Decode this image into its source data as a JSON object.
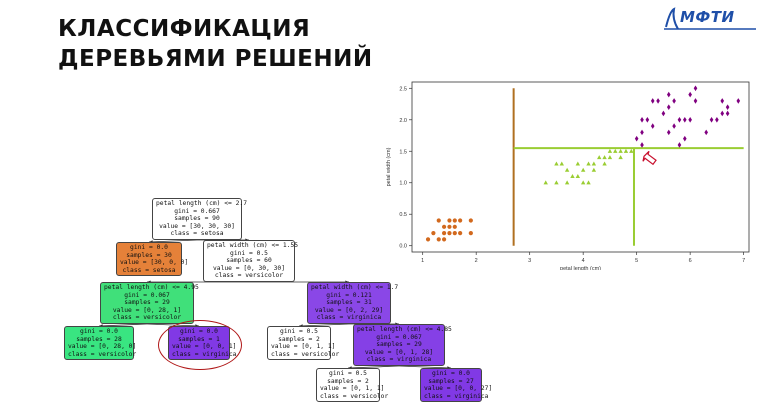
{
  "slide": {
    "title_line1": "КЛАССИФИКАЦИЯ",
    "title_line2": "ДЕРЕВЬЯМИ РЕШЕНИЙ",
    "logo_text": "МФТИ",
    "logo_color": "#1f4fa8"
  },
  "chart_data": {
    "type": "scatter",
    "xlabel": "petal length (cm)",
    "ylabel": "petal width (cm)",
    "xlim": [
      0.8,
      7.1
    ],
    "ylim": [
      -0.1,
      2.6
    ],
    "xticks": [
      "1",
      "2",
      "3",
      "4",
      "5",
      "6",
      "7"
    ],
    "yticks": [
      "0.0",
      "0.5",
      "1.0",
      "1.5",
      "2.0",
      "2.5"
    ],
    "grid": false,
    "series": [
      {
        "color": "#d2691e",
        "marker": "circle",
        "points": [
          [
            1.1,
            0.1
          ],
          [
            1.3,
            0.1
          ],
          [
            1.4,
            0.2
          ],
          [
            1.5,
            0.2
          ],
          [
            1.6,
            0.2
          ],
          [
            1.4,
            0.3
          ],
          [
            1.3,
            0.4
          ],
          [
            1.5,
            0.4
          ],
          [
            1.6,
            0.4
          ],
          [
            1.7,
            0.4
          ],
          [
            1.9,
            0.4
          ],
          [
            1.2,
            0.2
          ],
          [
            1.6,
            0.3
          ],
          [
            1.4,
            0.1
          ],
          [
            1.5,
            0.3
          ],
          [
            1.7,
            0.2
          ],
          [
            1.9,
            0.2
          ]
        ]
      },
      {
        "color": "#9acd32",
        "marker": "triangle",
        "points": [
          [
            3.3,
            1.0
          ],
          [
            3.5,
            1.0
          ],
          [
            3.7,
            1.0
          ],
          [
            3.9,
            1.1
          ],
          [
            4.0,
            1.0
          ],
          [
            3.8,
            1.1
          ],
          [
            3.6,
            1.3
          ],
          [
            3.9,
            1.3
          ],
          [
            4.0,
            1.2
          ],
          [
            4.1,
            1.3
          ],
          [
            4.2,
            1.3
          ],
          [
            4.4,
            1.3
          ],
          [
            3.7,
            1.2
          ],
          [
            4.5,
            1.4
          ],
          [
            4.7,
            1.4
          ],
          [
            4.3,
            1.4
          ],
          [
            4.5,
            1.5
          ],
          [
            4.6,
            1.5
          ],
          [
            4.7,
            1.5
          ],
          [
            4.8,
            1.5
          ],
          [
            4.9,
            1.5
          ],
          [
            4.4,
            1.4
          ],
          [
            3.5,
            1.3
          ],
          [
            4.2,
            1.2
          ],
          [
            4.1,
            1.0
          ]
        ]
      },
      {
        "color": "#800080",
        "marker": "diamond",
        "points": [
          [
            5.0,
            1.7
          ],
          [
            5.1,
            1.8
          ],
          [
            5.3,
            1.9
          ],
          [
            5.1,
            2.0
          ],
          [
            5.2,
            2.0
          ],
          [
            5.5,
            2.1
          ],
          [
            5.6,
            2.2
          ],
          [
            5.8,
            2.0
          ],
          [
            5.9,
            2.0
          ],
          [
            6.0,
            2.0
          ],
          [
            6.1,
            2.3
          ],
          [
            5.7,
            2.3
          ],
          [
            5.4,
            2.3
          ],
          [
            5.6,
            2.4
          ],
          [
            6.0,
            2.4
          ],
          [
            6.3,
            1.8
          ],
          [
            6.6,
            2.1
          ],
          [
            6.7,
            2.2
          ],
          [
            6.9,
            2.3
          ],
          [
            6.4,
            2.0
          ],
          [
            5.8,
            1.6
          ],
          [
            5.1,
            1.6
          ],
          [
            5.7,
            1.9
          ],
          [
            5.3,
            2.3
          ],
          [
            6.1,
            2.5
          ],
          [
            6.6,
            2.3
          ],
          [
            5.6,
            1.8
          ],
          [
            5.9,
            1.7
          ],
          [
            6.7,
            2.1
          ],
          [
            6.5,
            2.0
          ]
        ]
      }
    ],
    "decision_lines": [
      {
        "orientation": "vertical",
        "x": 2.7,
        "y_range": [
          0.0,
          2.5
        ],
        "color": "#b07020"
      },
      {
        "orientation": "horizontal",
        "y": 1.55,
        "x_range": [
          2.7,
          7.0
        ],
        "color": "#9acd32"
      },
      {
        "orientation": "vertical",
        "x": 4.95,
        "y_range": [
          0.0,
          1.55
        ],
        "color": "#9acd32"
      }
    ],
    "annotation": {
      "kind": "arrow",
      "x": 5.1,
      "y": 1.42,
      "color": "#c8102e"
    }
  },
  "tree": {
    "nodes": [
      {
        "id": "n0",
        "lines": [
          "petal length (cm) <= 2.7",
          "gini = 0.667",
          "samples = 90",
          "value = [30, 30, 30]",
          "class = setosa"
        ],
        "fill": "#ffffff"
      },
      {
        "id": "n1",
        "lines": [
          "gini = 0.0",
          "samples = 30",
          "value = [30, 0, 0]",
          "class = setosa"
        ],
        "fill": "#e58139"
      },
      {
        "id": "n2",
        "lines": [
          "petal width (cm) <= 1.55",
          "gini = 0.5",
          "samples = 60",
          "value = [0, 30, 30]",
          "class = versicolor"
        ],
        "fill": "#ffffff"
      },
      {
        "id": "n3",
        "lines": [
          "petal length (cm) <= 4.95",
          "gini = 0.067",
          "samples = 29",
          "value = [0, 28, 1]",
          "class = versicolor"
        ],
        "fill": "#40e07a"
      },
      {
        "id": "n4",
        "lines": [
          "petal width (cm) <= 1.7",
          "gini = 0.121",
          "samples = 31",
          "value = [0, 2, 29]",
          "class = virginica"
        ],
        "fill": "#8a47e7"
      },
      {
        "id": "n5",
        "lines": [
          "gini = 0.0",
          "samples = 28",
          "value = [0, 28, 0]",
          "class = versicolor"
        ],
        "fill": "#39e581"
      },
      {
        "id": "n6",
        "lines": [
          "gini = 0.0",
          "samples = 1",
          "value = [0, 0, 1]",
          "class = virginica"
        ],
        "fill": "#8139e5"
      },
      {
        "id": "n7",
        "lines": [
          "gini = 0.5",
          "samples = 2",
          "value = [0, 1, 1]",
          "class = versicolor"
        ],
        "fill": "#ffffff"
      },
      {
        "id": "n8",
        "lines": [
          "petal length (cm) <= 4.85",
          "gini = 0.067",
          "samples = 29",
          "value = [0, 1, 28]",
          "class = virginica"
        ],
        "fill": "#8540e6"
      },
      {
        "id": "n9",
        "lines": [
          "gini = 0.5",
          "samples = 2",
          "value = [0, 1, 1]",
          "class = versicolor"
        ],
        "fill": "#ffffff"
      },
      {
        "id": "n10",
        "lines": [
          "gini = 0.0",
          "samples = 27",
          "value = [0, 0, 27]",
          "class = virginica"
        ],
        "fill": "#8139e5"
      }
    ],
    "edges": [
      [
        "n0",
        "n1"
      ],
      [
        "n0",
        "n2"
      ],
      [
        "n2",
        "n3"
      ],
      [
        "n2",
        "n4"
      ],
      [
        "n3",
        "n5"
      ],
      [
        "n3",
        "n6"
      ],
      [
        "n4",
        "n7"
      ],
      [
        "n4",
        "n8"
      ],
      [
        "n8",
        "n9"
      ],
      [
        "n8",
        "n10"
      ]
    ],
    "highlighted_node": "n6",
    "highlight_color": "#b01818"
  }
}
